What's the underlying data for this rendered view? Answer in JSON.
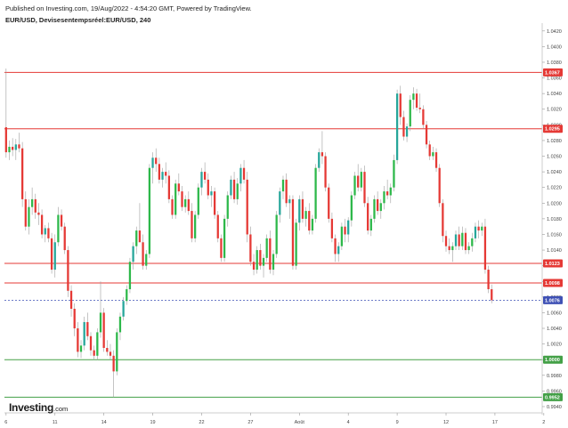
{
  "header": {
    "published": "Published on Investing.com, 19/Aug/2022 - 4:54:20 GMT, Powered by TradingView.",
    "instrument": "EUR/USD, Devisesentempsréel:EUR/USD, 240"
  },
  "logo": {
    "brand": "Investing",
    "domain": ".com"
  },
  "colors": {
    "up": "#26a69a",
    "up_alt": "#2db84a",
    "down": "#e53935",
    "resistance": "#e53935",
    "support": "#43a047",
    "current": "#3f51b5",
    "axis": "#cccccc"
  },
  "chart_data": {
    "type": "candlestick",
    "title": "EUR/USD, Devisesentempsréel:EUR/USD, 240",
    "ylim": [
      0.9932,
      1.043
    ],
    "y_ticks": [
      "1.0420",
      "1.0400",
      "1.0380",
      "1.0360",
      "1.0340",
      "1.0320",
      "1.0300",
      "1.0280",
      "1.0260",
      "1.0240",
      "1.0220",
      "1.0200",
      "1.0180",
      "1.0160",
      "1.0140",
      "1.0120",
      "1.0100",
      "1.0080",
      "1.0060",
      "1.0040",
      "1.0020",
      "1.0000",
      "0.9980",
      "0.9960",
      "0.9940"
    ],
    "x_labels": [
      {
        "label": "6",
        "i": 1
      },
      {
        "label": "11",
        "i": 16
      },
      {
        "label": "14",
        "i": 31
      },
      {
        "label": "19",
        "i": 46
      },
      {
        "label": "22",
        "i": 61
      },
      {
        "label": "27",
        "i": 76
      },
      {
        "label": "Août",
        "i": 91
      },
      {
        "label": "4",
        "i": 106
      },
      {
        "label": "9",
        "i": 121
      },
      {
        "label": "12",
        "i": 136
      },
      {
        "label": "17",
        "i": 151
      },
      {
        "label": "2",
        "i": 166
      }
    ],
    "n_slots": 165,
    "levels": [
      {
        "value": 1.0367,
        "label": "1.0367",
        "kind": "resistance"
      },
      {
        "value": 1.0295,
        "label": "1.0295",
        "kind": "resistance"
      },
      {
        "value": 1.0123,
        "label": "1.0123",
        "kind": "resistance"
      },
      {
        "value": 1.0098,
        "label": "1.0098",
        "kind": "resistance"
      },
      {
        "value": 1.0076,
        "label": "1.0076",
        "kind": "current"
      },
      {
        "value": 1.0,
        "label": "1.0000",
        "kind": "support"
      },
      {
        "value": 0.9952,
        "label": "0.9952",
        "kind": "support"
      }
    ],
    "series": [
      {
        "name": "EUR/USD",
        "points": [
          [
            1.0297,
            1.0372,
            1.0258,
            1.0265
          ],
          [
            1.0265,
            1.028,
            1.0255,
            1.0272
          ],
          [
            1.0272,
            1.0283,
            1.026,
            1.0268
          ],
          [
            1.0268,
            1.0282,
            1.0255,
            1.0275
          ],
          [
            1.0275,
            1.029,
            1.0265,
            1.027
          ],
          [
            1.027,
            1.0278,
            1.0195,
            1.0205
          ],
          [
            1.0205,
            1.0215,
            1.0165,
            1.017
          ],
          [
            1.017,
            1.0205,
            1.016,
            1.0195
          ],
          [
            1.0195,
            1.022,
            1.0185,
            1.0205
          ],
          [
            1.0205,
            1.0212,
            1.018,
            1.0188
          ],
          [
            1.0188,
            1.02,
            1.0172,
            1.0185
          ],
          [
            1.0185,
            1.0192,
            1.0155,
            1.016
          ],
          [
            1.016,
            1.0172,
            1.015,
            1.0168
          ],
          [
            1.0168,
            1.0175,
            1.015,
            1.0155
          ],
          [
            1.0155,
            1.0162,
            1.011,
            1.0115
          ],
          [
            1.0115,
            1.016,
            1.0105,
            1.015
          ],
          [
            1.015,
            1.0195,
            1.0145,
            1.0185
          ],
          [
            1.0185,
            1.0192,
            1.0165,
            1.017
          ],
          [
            1.017,
            1.0175,
            1.0135,
            1.014
          ],
          [
            1.014,
            1.0145,
            1.008,
            1.0088
          ],
          [
            1.0088,
            1.0095,
            1.0055,
            1.0065
          ],
          [
            1.0065,
            1.0072,
            1.003,
            1.004
          ],
          [
            1.004,
            1.0048,
            1.0003,
            1.001
          ],
          [
            1.001,
            1.0025,
            1.0002,
            1.0018
          ],
          [
            1.0018,
            1.0055,
            1.0012,
            1.0048
          ],
          [
            1.0048,
            1.006,
            1.0025,
            1.003
          ],
          [
            1.003,
            1.0035,
            1.0005,
            1.0012
          ],
          [
            1.0012,
            1.0018,
            1.0,
            1.0005
          ],
          [
            1.0005,
            1.004,
            1.0,
            1.0035
          ],
          [
            1.0035,
            1.01,
            1.0028,
            1.006
          ],
          [
            1.006,
            1.0066,
            1.001,
            1.0015
          ],
          [
            1.0015,
            1.0025,
            1.0005,
            1.001
          ],
          [
            1.001,
            1.002,
            1.0,
            1.0005
          ],
          [
            1.0005,
            1.0012,
            0.9952,
            0.9985
          ],
          [
            0.9985,
            1.004,
            0.998,
            1.0035
          ],
          [
            1.0035,
            1.006,
            1.0025,
            1.0055
          ],
          [
            1.0055,
            1.008,
            1.005,
            1.0075
          ],
          [
            1.0075,
            1.0095,
            1.007,
            1.009
          ],
          [
            1.009,
            1.013,
            1.0085,
            1.0125
          ],
          [
            1.0125,
            1.015,
            1.0115,
            1.0145
          ],
          [
            1.0145,
            1.017,
            1.0135,
            1.0165
          ],
          [
            1.0165,
            1.02,
            1.0155,
            1.015
          ],
          [
            1.015,
            1.016,
            1.0115,
            1.012
          ],
          [
            1.012,
            1.014,
            1.0115,
            1.0135
          ],
          [
            1.0135,
            1.025,
            1.013,
            1.0245
          ],
          [
            1.0245,
            1.0265,
            1.0225,
            1.0258
          ],
          [
            1.0258,
            1.027,
            1.024,
            1.025
          ],
          [
            1.025,
            1.0258,
            1.0225,
            1.023
          ],
          [
            1.023,
            1.0245,
            1.022,
            1.024
          ],
          [
            1.024,
            1.0252,
            1.0225,
            1.0235
          ],
          [
            1.0235,
            1.0242,
            1.02,
            1.0205
          ],
          [
            1.0205,
            1.021,
            1.018,
            1.0185
          ],
          [
            1.0185,
            1.023,
            1.018,
            1.0225
          ],
          [
            1.0225,
            1.0238,
            1.021,
            1.0215
          ],
          [
            1.0215,
            1.0222,
            1.019,
            1.0195
          ],
          [
            1.0195,
            1.021,
            1.0188,
            1.0205
          ],
          [
            1.0205,
            1.0215,
            1.0185,
            1.019
          ],
          [
            1.019,
            1.02,
            1.015,
            1.0155
          ],
          [
            1.0155,
            1.019,
            1.015,
            1.0185
          ],
          [
            1.0185,
            1.0225,
            1.018,
            1.022
          ],
          [
            1.022,
            1.0245,
            1.021,
            1.024
          ],
          [
            1.024,
            1.0252,
            1.0225,
            1.023
          ],
          [
            1.023,
            1.0238,
            1.0205,
            1.021
          ],
          [
            1.021,
            1.0222,
            1.0195,
            1.0215
          ],
          [
            1.0215,
            1.022,
            1.018,
            1.0185
          ],
          [
            1.0185,
            1.019,
            1.015,
            1.0155
          ],
          [
            1.0155,
            1.016,
            1.0125,
            1.013
          ],
          [
            1.013,
            1.0185,
            1.0125,
            1.018
          ],
          [
            1.018,
            1.0215,
            1.017,
            1.021
          ],
          [
            1.021,
            1.0235,
            1.0205,
            1.023
          ],
          [
            1.023,
            1.024,
            1.02,
            1.0205
          ],
          [
            1.0205,
            1.0232,
            1.0198,
            1.0225
          ],
          [
            1.0225,
            1.025,
            1.0215,
            1.0245
          ],
          [
            1.0245,
            1.0255,
            1.0225,
            1.023
          ],
          [
            1.023,
            1.024,
            1.015,
            1.016
          ],
          [
            1.016,
            1.017,
            1.012,
            1.0125
          ],
          [
            1.0125,
            1.0135,
            1.0108,
            1.0115
          ],
          [
            1.0115,
            1.0145,
            1.011,
            1.014
          ],
          [
            1.014,
            1.0148,
            1.0115,
            1.012
          ],
          [
            1.012,
            1.0135,
            1.0105,
            1.013
          ],
          [
            1.013,
            1.016,
            1.0125,
            1.0155
          ],
          [
            1.0155,
            1.0165,
            1.011,
            1.0115
          ],
          [
            1.0115,
            1.014,
            1.0108,
            1.0135
          ],
          [
            1.0135,
            1.019,
            1.013,
            1.0185
          ],
          [
            1.0185,
            1.022,
            1.0175,
            1.0215
          ],
          [
            1.0215,
            1.0235,
            1.0205,
            1.023
          ],
          [
            1.023,
            1.0238,
            1.0195,
            1.02
          ],
          [
            1.02,
            1.021,
            1.018,
            1.0205
          ],
          [
            1.0205,
            1.021,
            1.0115,
            1.012
          ],
          [
            1.012,
            1.018,
            1.0115,
            1.0175
          ],
          [
            1.0175,
            1.021,
            1.0165,
            1.0205
          ],
          [
            1.0205,
            1.0215,
            1.0175,
            1.018
          ],
          [
            1.018,
            1.0195,
            1.017,
            1.019
          ],
          [
            1.019,
            1.02,
            1.016,
            1.0165
          ],
          [
            1.0165,
            1.0185,
            1.016,
            1.018
          ],
          [
            1.018,
            1.025,
            1.0175,
            1.0245
          ],
          [
            1.0245,
            1.027,
            1.024,
            1.0265
          ],
          [
            1.0265,
            1.0292,
            1.025,
            1.026
          ],
          [
            1.026,
            1.0265,
            1.0215,
            1.022
          ],
          [
            1.022,
            1.0225,
            1.0175,
            1.018
          ],
          [
            1.018,
            1.0188,
            1.015,
            1.0155
          ],
          [
            1.0155,
            1.016,
            1.0125,
            1.0135
          ],
          [
            1.0135,
            1.015,
            1.0125,
            1.0145
          ],
          [
            1.0145,
            1.0175,
            1.014,
            1.017
          ],
          [
            1.017,
            1.018,
            1.015,
            1.016
          ],
          [
            1.016,
            1.0182,
            1.015,
            1.0178
          ],
          [
            1.0178,
            1.0215,
            1.017,
            1.021
          ],
          [
            1.021,
            1.024,
            1.0205,
            1.0235
          ],
          [
            1.0235,
            1.025,
            1.0215,
            1.022
          ],
          [
            1.022,
            1.0245,
            1.0215,
            1.024
          ],
          [
            1.024,
            1.0248,
            1.0195,
            1.02
          ],
          [
            1.02,
            1.0208,
            1.016,
            1.0165
          ],
          [
            1.0165,
            1.0185,
            1.0158,
            1.018
          ],
          [
            1.018,
            1.021,
            1.0175,
            1.0205
          ],
          [
            1.0205,
            1.0215,
            1.0185,
            1.019
          ],
          [
            1.019,
            1.0205,
            1.018,
            1.02
          ],
          [
            1.02,
            1.0222,
            1.0192,
            1.0215
          ],
          [
            1.0215,
            1.023,
            1.0205,
            1.021
          ],
          [
            1.021,
            1.0225,
            1.02,
            1.022
          ],
          [
            1.022,
            1.0262,
            1.0215,
            1.0255
          ],
          [
            1.0255,
            1.0345,
            1.025,
            1.034
          ],
          [
            1.034,
            1.035,
            1.03,
            1.031
          ],
          [
            1.031,
            1.0318,
            1.028,
            1.0285
          ],
          [
            1.0285,
            1.0302,
            1.0278,
            1.0298
          ],
          [
            1.0298,
            1.0338,
            1.0292,
            1.0332
          ],
          [
            1.0332,
            1.0348,
            1.032,
            1.034
          ],
          [
            1.034,
            1.0346,
            1.0318,
            1.0322
          ],
          [
            1.0322,
            1.034,
            1.0315,
            1.032
          ],
          [
            1.032,
            1.0325,
            1.0295,
            1.03
          ],
          [
            1.03,
            1.0305,
            1.027,
            1.0275
          ],
          [
            1.0275,
            1.028,
            1.0255,
            1.026
          ],
          [
            1.026,
            1.0272,
            1.0255,
            1.0265
          ],
          [
            1.0265,
            1.027,
            1.024,
            1.0245
          ],
          [
            1.0245,
            1.025,
            1.0195,
            1.02
          ],
          [
            1.02,
            1.0205,
            1.015,
            1.0158
          ],
          [
            1.0158,
            1.0165,
            1.0138,
            1.0145
          ],
          [
            1.0145,
            1.0155,
            1.0135,
            1.014
          ],
          [
            1.014,
            1.015,
            1.0125,
            1.0145
          ],
          [
            1.0145,
            1.0165,
            1.014,
            1.016
          ],
          [
            1.016,
            1.017,
            1.014,
            1.0145
          ],
          [
            1.0145,
            1.017,
            1.014,
            1.0162
          ],
          [
            1.0162,
            1.0168,
            1.0135,
            1.014
          ],
          [
            1.014,
            1.015,
            1.0135,
            1.0145
          ],
          [
            1.0145,
            1.0162,
            1.0138,
            1.0155
          ],
          [
            1.0155,
            1.0175,
            1.015,
            1.017
          ],
          [
            1.017,
            1.0178,
            1.0155,
            1.0165
          ],
          [
            1.0165,
            1.0175,
            1.0158,
            1.017
          ],
          [
            1.017,
            1.018,
            1.011,
            1.0115
          ],
          [
            1.0115,
            1.012,
            1.0085,
            1.009
          ],
          [
            1.009,
            1.0096,
            1.0072,
            1.0076
          ]
        ]
      }
    ]
  }
}
